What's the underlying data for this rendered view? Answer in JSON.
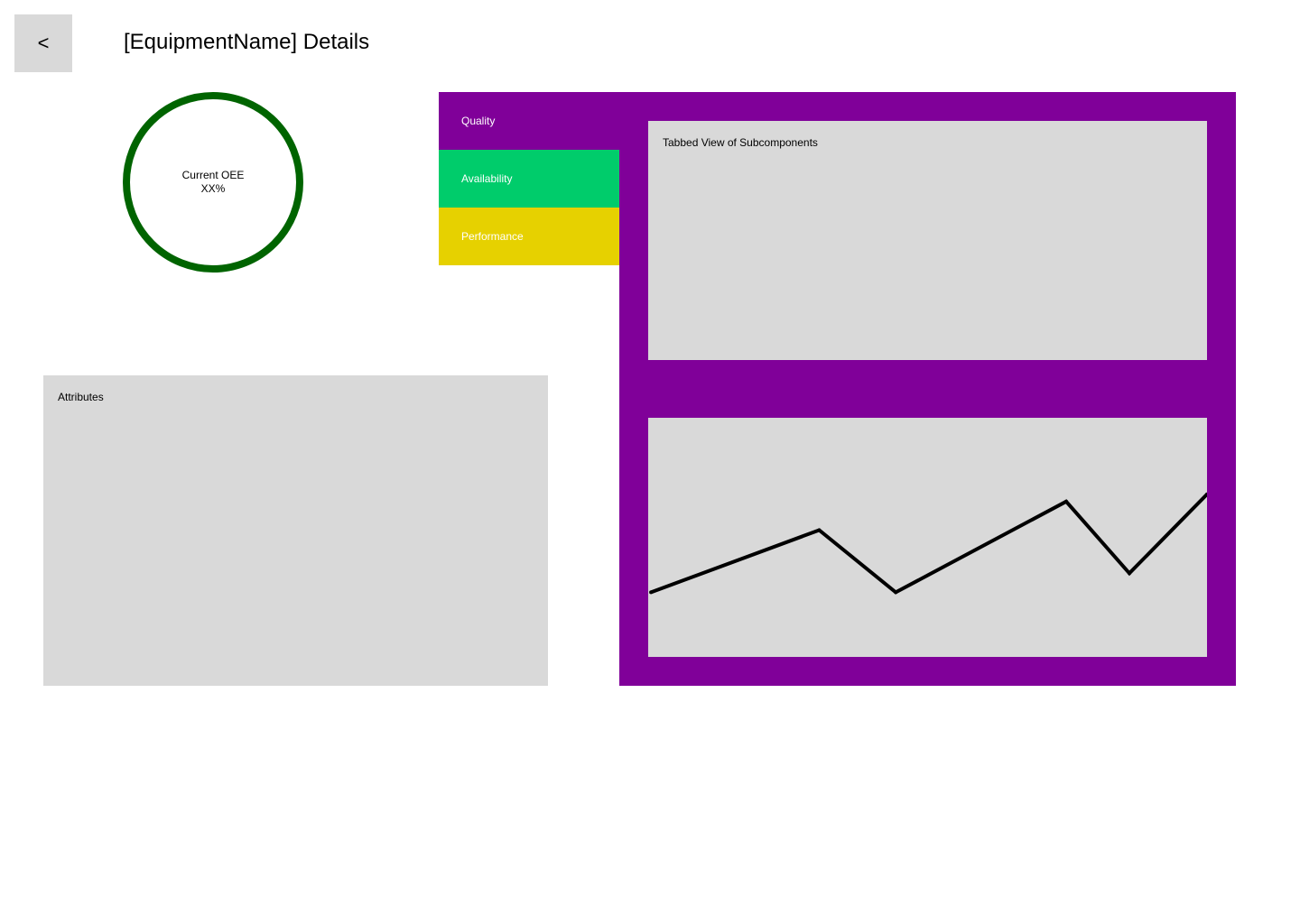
{
  "header": {
    "back_label": "<",
    "title": "[EquipmentName] Details"
  },
  "oee": {
    "label": "Current OEE",
    "value": "XX%",
    "ring_color": "#006400"
  },
  "tabs": [
    {
      "label": "Quality",
      "color": "#800099",
      "selected": true
    },
    {
      "label": "Availability",
      "color": "#00cc6b",
      "selected": false
    },
    {
      "label": "Performance",
      "color": "#e6d100",
      "selected": false
    }
  ],
  "content_panel": {
    "color": "#800099",
    "subcomponents_label": "Tabbed View of Subcomponents"
  },
  "attributes": {
    "label": "Attributes"
  },
  "chart_data": {
    "type": "line",
    "title": "",
    "xlabel": "",
    "ylabel": "",
    "grid": false,
    "x": [
      0,
      1,
      2,
      3,
      4,
      5,
      6
    ],
    "y": [
      0.27,
      0.53,
      0.27,
      0.65,
      0.35,
      0.68,
      0.68
    ],
    "ylim": [
      0,
      1
    ],
    "series": [
      {
        "points": [
          [
            0.005,
            0.27
          ],
          [
            0.306,
            0.53
          ],
          [
            0.443,
            0.27
          ],
          [
            0.748,
            0.65
          ],
          [
            0.861,
            0.35
          ],
          [
            1.0,
            0.68
          ]
        ]
      }
    ],
    "line_color": "#000000"
  }
}
